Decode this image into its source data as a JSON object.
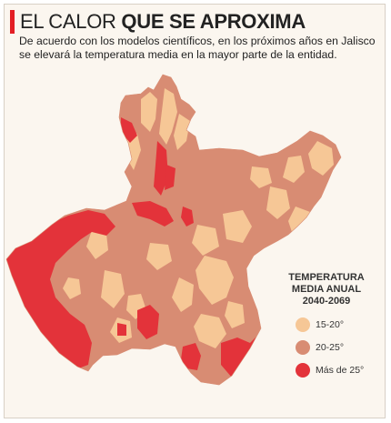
{
  "header": {
    "title_regular": "EL CALOR",
    "title_bold": "QUE SE APROXIMA",
    "subtitle": "De acuerdo con los modelos científicos, en los próximos años en Jalisco se elevará la temperatura media en la mayor parte de la entidad."
  },
  "legend": {
    "title_lines": [
      "TEMPERATURA",
      "MEDIA ANUAL",
      "2040-2069"
    ],
    "items": [
      {
        "label": "15-20°",
        "color": "#f6c796"
      },
      {
        "label": "20-25°",
        "color": "#d88c73"
      },
      {
        "label": "Más de 25°",
        "color": "#e3333a"
      }
    ]
  },
  "map": {
    "region": "Jalisco",
    "colors": {
      "cool": "#f6c796",
      "mid": "#d88c73",
      "hot": "#e3333a",
      "accent": "#e31e24"
    }
  }
}
